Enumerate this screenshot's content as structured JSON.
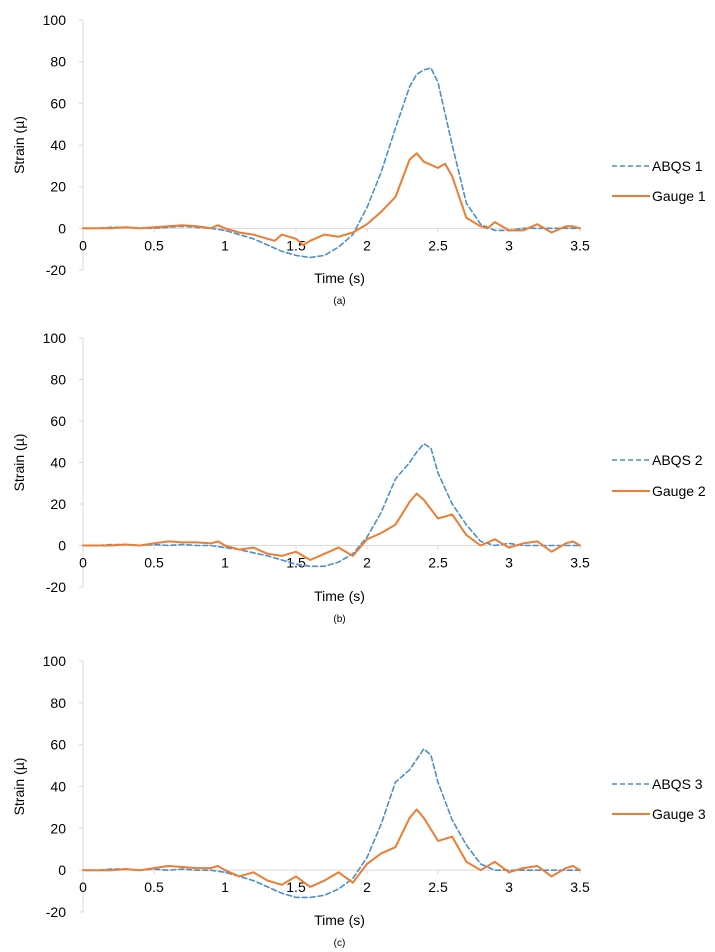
{
  "colors": {
    "abqs": "#4a8fcf",
    "gauge": "#ed7d31",
    "axis": "#d9d9d9"
  },
  "chart_data": [
    {
      "type": "line",
      "caption": "(a)",
      "xlabel": "Time (s)",
      "ylabel": "Strain (µ)",
      "xlim": [
        0,
        3.5
      ],
      "ylim": [
        -20,
        100
      ],
      "xticks": [
        "0",
        "0.5",
        "1",
        "1.5",
        "2",
        "2.5",
        "3",
        "3.5"
      ],
      "yticks": [
        "-20",
        "0",
        "20",
        "40",
        "60",
        "80",
        "100"
      ],
      "legend_position": "right",
      "grid": false,
      "series": [
        {
          "name": "ABQS 1",
          "style": "dashed",
          "color": "#4a8fcf",
          "x": [
            0,
            0.1,
            0.2,
            0.3,
            0.4,
            0.5,
            0.6,
            0.7,
            0.8,
            0.9,
            1.0,
            1.1,
            1.2,
            1.3,
            1.4,
            1.5,
            1.6,
            1.7,
            1.8,
            1.9,
            2.0,
            2.1,
            2.2,
            2.3,
            2.35,
            2.4,
            2.45,
            2.5,
            2.6,
            2.7,
            2.8,
            2.9,
            3.0,
            3.1,
            3.2,
            3.3,
            3.4,
            3.5
          ],
          "y": [
            0,
            0,
            0.5,
            0.5,
            0,
            0,
            0.5,
            1,
            0.5,
            0,
            -1,
            -3,
            -5,
            -8,
            -11,
            -13,
            -14,
            -13,
            -9,
            -3,
            10,
            27,
            48,
            68,
            74,
            76,
            77,
            70,
            40,
            12,
            2,
            -1,
            -1,
            0,
            0,
            0,
            0,
            0
          ]
        },
        {
          "name": "Gauge 1",
          "style": "solid",
          "color": "#ed7d31",
          "x": [
            0,
            0.1,
            0.2,
            0.3,
            0.4,
            0.5,
            0.6,
            0.7,
            0.8,
            0.9,
            0.95,
            1.0,
            1.1,
            1.2,
            1.3,
            1.35,
            1.4,
            1.5,
            1.55,
            1.6,
            1.7,
            1.8,
            1.9,
            2.0,
            2.1,
            2.2,
            2.3,
            2.35,
            2.4,
            2.5,
            2.55,
            2.6,
            2.7,
            2.8,
            2.85,
            2.9,
            3.0,
            3.1,
            3.2,
            3.3,
            3.4,
            3.45,
            3.5
          ],
          "y": [
            0,
            0,
            0,
            0.5,
            0,
            0.5,
            1,
            1.5,
            1,
            0,
            1.5,
            0,
            -2,
            -3,
            -5,
            -6,
            -3,
            -5,
            -8,
            -6,
            -3,
            -4,
            -2,
            2,
            8,
            15,
            33,
            36,
            32,
            29,
            31,
            25,
            5,
            1,
            0,
            3,
            -1,
            -1,
            2,
            -2,
            1,
            1,
            0
          ]
        }
      ]
    },
    {
      "type": "line",
      "caption": "(b)",
      "xlabel": "Time (s)",
      "ylabel": "Strain (µ)",
      "xlim": [
        0,
        3.5
      ],
      "ylim": [
        -20,
        100
      ],
      "xticks": [
        "0",
        "0.5",
        "1",
        "1.5",
        "2",
        "2.5",
        "3",
        "3.5"
      ],
      "yticks": [
        "-20",
        "0",
        "20",
        "40",
        "60",
        "80",
        "100"
      ],
      "legend_position": "right",
      "grid": false,
      "series": [
        {
          "name": "ABQS 2",
          "style": "dashed",
          "color": "#4a8fcf",
          "x": [
            0,
            0.1,
            0.2,
            0.3,
            0.4,
            0.5,
            0.6,
            0.7,
            0.8,
            0.9,
            1.0,
            1.1,
            1.2,
            1.3,
            1.4,
            1.5,
            1.6,
            1.7,
            1.8,
            1.9,
            2.0,
            2.1,
            2.2,
            2.3,
            2.35,
            2.4,
            2.45,
            2.5,
            2.6,
            2.7,
            2.8,
            2.9,
            3.0,
            3.1,
            3.2,
            3.3,
            3.4,
            3.5
          ],
          "y": [
            0,
            0,
            0.5,
            0.5,
            0,
            0.5,
            0,
            0.5,
            0,
            0,
            -1,
            -2,
            -3.5,
            -5,
            -7,
            -9,
            -10,
            -10,
            -8,
            -4,
            4,
            16,
            32,
            40,
            45,
            49,
            47,
            35,
            20,
            10,
            2,
            0,
            1,
            0,
            0,
            0,
            0,
            0
          ]
        },
        {
          "name": "Gauge 2",
          "style": "solid",
          "color": "#ed7d31",
          "x": [
            0,
            0.1,
            0.2,
            0.3,
            0.4,
            0.5,
            0.6,
            0.7,
            0.8,
            0.9,
            0.95,
            1.0,
            1.1,
            1.2,
            1.3,
            1.4,
            1.5,
            1.6,
            1.7,
            1.8,
            1.9,
            2.0,
            2.1,
            2.2,
            2.3,
            2.35,
            2.4,
            2.5,
            2.6,
            2.7,
            2.8,
            2.9,
            3.0,
            3.1,
            3.2,
            3.3,
            3.4,
            3.45,
            3.5
          ],
          "y": [
            0,
            0,
            0,
            0.5,
            0,
            1,
            2,
            1.5,
            1.5,
            1,
            2,
            0,
            -2,
            -1,
            -4,
            -5,
            -3,
            -7,
            -4,
            -1,
            -5,
            3,
            6,
            10,
            21,
            25,
            22,
            13,
            15,
            5,
            0,
            3,
            -1,
            1,
            2,
            -3,
            1,
            2,
            0
          ]
        }
      ]
    },
    {
      "type": "line",
      "caption": "(c)",
      "xlabel": "Time (s)",
      "ylabel": "Strain (µ)",
      "xlim": [
        0,
        3.5
      ],
      "ylim": [
        -20,
        100
      ],
      "xticks": [
        "0",
        "0.5",
        "1",
        "1.5",
        "2",
        "2.5",
        "3",
        "3.5"
      ],
      "yticks": [
        "-20",
        "0",
        "20",
        "40",
        "60",
        "80",
        "100"
      ],
      "legend_position": "right",
      "grid": false,
      "series": [
        {
          "name": "ABQS 3",
          "style": "dashed",
          "color": "#4a8fcf",
          "x": [
            0,
            0.1,
            0.2,
            0.3,
            0.4,
            0.5,
            0.6,
            0.7,
            0.8,
            0.9,
            1.0,
            1.1,
            1.2,
            1.3,
            1.4,
            1.5,
            1.6,
            1.7,
            1.8,
            1.9,
            2.0,
            2.1,
            2.2,
            2.3,
            2.35,
            2.4,
            2.45,
            2.5,
            2.6,
            2.7,
            2.8,
            2.9,
            3.0,
            3.1,
            3.2,
            3.3,
            3.4,
            3.5
          ],
          "y": [
            0,
            0,
            0.5,
            0.5,
            0,
            0.5,
            0,
            0.5,
            0,
            0,
            -1,
            -3,
            -5,
            -8,
            -11,
            -13,
            -13,
            -12,
            -9,
            -4,
            6,
            22,
            42,
            48,
            53,
            58,
            55,
            42,
            24,
            12,
            3,
            0,
            0,
            0,
            0,
            0,
            0,
            0
          ]
        },
        {
          "name": "Gauge 3",
          "style": "solid",
          "color": "#ed7d31",
          "x": [
            0,
            0.1,
            0.2,
            0.3,
            0.4,
            0.5,
            0.6,
            0.7,
            0.8,
            0.9,
            0.95,
            1.0,
            1.1,
            1.2,
            1.3,
            1.4,
            1.5,
            1.6,
            1.7,
            1.8,
            1.9,
            2.0,
            2.1,
            2.2,
            2.3,
            2.35,
            2.4,
            2.5,
            2.6,
            2.7,
            2.8,
            2.9,
            3.0,
            3.1,
            3.2,
            3.3,
            3.4,
            3.45,
            3.5
          ],
          "y": [
            0,
            0,
            0,
            0.5,
            0,
            1,
            2,
            1.5,
            1,
            1,
            2,
            0,
            -3,
            -1,
            -5,
            -7,
            -3,
            -8,
            -5,
            -1,
            -6,
            3,
            8,
            11,
            25,
            29,
            25,
            14,
            16,
            4,
            0,
            4,
            -1,
            1,
            2,
            -3,
            1,
            2,
            0
          ]
        }
      ]
    }
  ]
}
